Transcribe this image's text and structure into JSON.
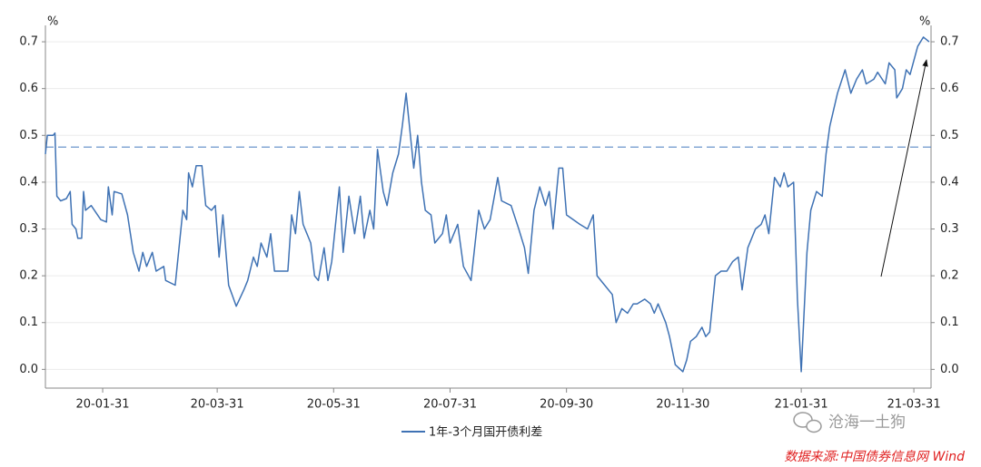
{
  "chart_data": {
    "type": "line",
    "y_unit": "%",
    "y2_unit": "%",
    "x": [
      "20-01-01",
      "20-01-02",
      "20-01-05",
      "20-01-06",
      "20-01-07",
      "20-01-09",
      "20-01-12",
      "20-01-14",
      "20-01-15",
      "20-01-17",
      "20-01-18",
      "20-01-20",
      "20-01-21",
      "20-01-22",
      "20-01-25",
      "20-01-30",
      "20-02-02",
      "20-02-03",
      "20-02-05",
      "20-02-06",
      "20-02-10",
      "20-02-13",
      "20-02-16",
      "20-02-19",
      "20-02-21",
      "20-02-23",
      "20-02-26",
      "20-02-28",
      "20-03-03",
      "20-03-04",
      "20-03-09",
      "20-03-13",
      "20-03-15",
      "20-03-16",
      "20-03-18",
      "20-03-20",
      "20-03-23",
      "20-03-25",
      "20-03-28",
      "20-03-30",
      "20-04-01",
      "20-04-03",
      "20-04-06",
      "20-04-10",
      "20-04-14",
      "20-04-16",
      "20-04-19",
      "20-04-21",
      "20-04-23",
      "20-04-26",
      "20-04-28",
      "20-04-30",
      "20-05-07",
      "20-05-09",
      "20-05-11",
      "20-05-13",
      "20-05-15",
      "20-05-19",
      "20-05-21",
      "20-05-23",
      "20-05-26",
      "20-05-28",
      "20-05-30",
      "20-06-03",
      "20-06-05",
      "20-06-08",
      "20-06-11",
      "20-06-14",
      "20-06-16",
      "20-06-19",
      "20-06-21",
      "20-06-23",
      "20-06-26",
      "20-06-28",
      "20-07-01",
      "20-07-04",
      "20-07-06",
      "20-07-08",
      "20-07-10",
      "20-07-12",
      "20-07-14",
      "20-07-16",
      "20-07-18",
      "20-07-21",
      "20-07-23",
      "20-07-27",
      "20-07-29",
      "20-07-31",
      "20-08-04",
      "20-08-07",
      "20-08-11",
      "20-08-15",
      "20-08-18",
      "20-08-21",
      "20-08-25",
      "20-08-27",
      "20-09-01",
      "20-09-05",
      "20-09-08",
      "20-09-10",
      "20-09-13",
      "20-09-16",
      "20-09-19",
      "20-09-21",
      "20-09-23",
      "20-09-26",
      "20-09-28",
      "20-09-30",
      "20-10-07",
      "20-10-11",
      "20-10-14",
      "20-10-16",
      "20-10-20",
      "20-10-24",
      "20-10-26",
      "20-10-29",
      "20-11-01",
      "20-11-04",
      "20-11-06",
      "20-11-10",
      "20-11-13",
      "20-11-15",
      "20-11-17",
      "20-11-21",
      "20-11-23",
      "20-11-26",
      "20-11-30",
      "20-12-02",
      "20-12-04",
      "20-12-07",
      "20-12-10",
      "20-12-12",
      "20-12-14",
      "20-12-17",
      "20-12-20",
      "20-12-23",
      "20-12-26",
      "20-12-29",
      "20-12-31",
      "21-01-03",
      "21-01-07",
      "21-01-10",
      "21-01-12",
      "21-01-14",
      "21-01-17",
      "21-01-20",
      "21-01-22",
      "21-01-24",
      "21-01-27",
      "21-01-29",
      "21-01-31",
      "21-02-03",
      "21-02-05",
      "21-02-08",
      "21-02-11",
      "21-02-13",
      "21-02-15",
      "21-02-19",
      "21-02-23",
      "21-02-26",
      "21-03-01",
      "21-03-04",
      "21-03-06",
      "21-03-10",
      "21-03-12",
      "21-03-16",
      "21-03-18",
      "21-03-21",
      "21-03-22",
      "21-03-25",
      "21-03-27",
      "21-03-29",
      "21-03-31",
      "21-04-02",
      "21-04-05",
      "21-04-08"
    ],
    "series": [
      {
        "name": "1年-3个月国开债利差",
        "color": "#3f72b4",
        "values": [
          0.46,
          0.5,
          0.5,
          0.505,
          0.37,
          0.36,
          0.365,
          0.38,
          0.31,
          0.3,
          0.28,
          0.28,
          0.38,
          0.34,
          0.35,
          0.32,
          0.315,
          0.39,
          0.33,
          0.38,
          0.375,
          0.33,
          0.25,
          0.21,
          0.25,
          0.22,
          0.25,
          0.21,
          0.22,
          0.19,
          0.18,
          0.34,
          0.32,
          0.42,
          0.39,
          0.435,
          0.435,
          0.35,
          0.34,
          0.35,
          0.24,
          0.33,
          0.18,
          0.135,
          0.17,
          0.19,
          0.24,
          0.22,
          0.27,
          0.24,
          0.29,
          0.21,
          0.21,
          0.33,
          0.29,
          0.38,
          0.31,
          0.27,
          0.2,
          0.19,
          0.26,
          0.19,
          0.23,
          0.39,
          0.25,
          0.37,
          0.29,
          0.37,
          0.28,
          0.34,
          0.3,
          0.47,
          0.38,
          0.35,
          0.42,
          0.46,
          0.52,
          0.59,
          0.51,
          0.43,
          0.5,
          0.4,
          0.34,
          0.33,
          0.27,
          0.29,
          0.33,
          0.27,
          0.31,
          0.22,
          0.19,
          0.34,
          0.3,
          0.32,
          0.41,
          0.36,
          0.35,
          0.3,
          0.26,
          0.205,
          0.34,
          0.39,
          0.35,
          0.38,
          0.3,
          0.43,
          0.43,
          0.33,
          0.31,
          0.3,
          0.33,
          0.2,
          0.18,
          0.16,
          0.1,
          0.13,
          0.12,
          0.14,
          0.14,
          0.15,
          0.14,
          0.12,
          0.14,
          0.1,
          0.07,
          0.01,
          -0.005,
          0.02,
          0.06,
          0.07,
          0.09,
          0.07,
          0.08,
          0.2,
          0.21,
          0.21,
          0.23,
          0.24,
          0.17,
          0.26,
          0.3,
          0.31,
          0.33,
          0.29,
          0.41,
          0.39,
          0.42,
          0.39,
          0.4,
          0.15,
          -0.005,
          0.25,
          0.34,
          0.38,
          0.37,
          0.46,
          0.52,
          0.59,
          0.64,
          0.59,
          0.62,
          0.64,
          0.61,
          0.62,
          0.635,
          0.61,
          0.655,
          0.64,
          0.58,
          0.6,
          0.64,
          0.63,
          0.66,
          0.69,
          0.71,
          0.7
        ]
      }
    ],
    "hline": 0.475,
    "hline_color": "#5b8ac6",
    "xlim": [
      "20-01-01",
      "21-04-09"
    ],
    "xticks": [
      "20-01-31",
      "20-03-31",
      "20-05-31",
      "20-07-31",
      "20-09-30",
      "20-11-30",
      "21-01-31",
      "21-03-31"
    ],
    "ylim": [
      -0.04,
      0.735
    ],
    "yticks": [
      {
        "value": 0,
        "label": "0.0"
      },
      0.1,
      0.2,
      0.3,
      0.4,
      0.5,
      0.6,
      0.7
    ],
    "y2lim": [
      -0.04,
      0.735
    ],
    "y2ticks": [
      {
        "value": 0,
        "label": "0.0"
      },
      0.1,
      0.2,
      0.3,
      0.4,
      0.5,
      0.6,
      0.7
    ],
    "grid": true,
    "watermark": "沧海一土狗",
    "source": "数据来源:中国债券信息网 Wind"
  }
}
